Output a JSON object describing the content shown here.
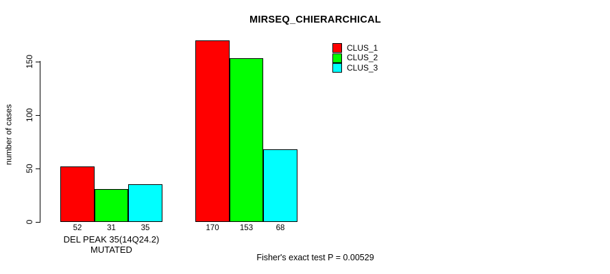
{
  "title": "MIRSEQ_CHIERARCHICAL",
  "y_axis": {
    "label": "number of cases",
    "ticks": [
      "0",
      "50",
      "100",
      "150"
    ]
  },
  "x_axis": {
    "label": "DEL PEAK 35(14Q24.2) MUTATED"
  },
  "legend": {
    "items": [
      {
        "label": "CLUS_1",
        "color": "#ff0000"
      },
      {
        "label": "CLUS_2",
        "color": "#00ff00"
      },
      {
        "label": "CLUS_3",
        "color": "#00ffff"
      }
    ]
  },
  "footer": {
    "text": "Fisher's exact test P = 0.00529"
  },
  "chart_data": {
    "type": "bar",
    "title": "MIRSEQ_CHIERARCHICAL",
    "categories": [
      "DEL PEAK 35(14Q24.2) MUTATED",
      ""
    ],
    "series": [
      {
        "name": "CLUS_1",
        "color": "#ff0000",
        "values": [
          52,
          170
        ]
      },
      {
        "name": "CLUS_2",
        "color": "#00ff00",
        "values": [
          31,
          153
        ]
      },
      {
        "name": "CLUS_3",
        "color": "#00ffff",
        "values": [
          35,
          68
        ]
      }
    ],
    "bar_value_labels": [
      [
        "52",
        "31",
        "35"
      ],
      [
        "170",
        "153",
        "68"
      ]
    ],
    "xlabel": "DEL PEAK 35(14Q24.2) MUTATED",
    "ylabel": "number of cases",
    "ylim": [
      0,
      175
    ],
    "yticks": [
      0,
      50,
      100,
      150
    ],
    "grid": false,
    "bar_border_color": "#000000",
    "legend_position": "top-right",
    "annotation": "Fisher's exact test P = 0.00529"
  }
}
